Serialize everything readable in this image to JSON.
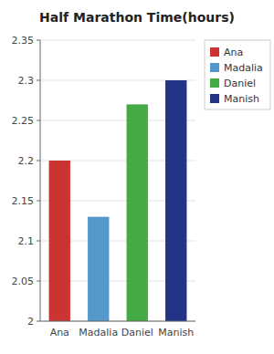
{
  "chart_data": {
    "type": "bar",
    "title": "Half Marathon Time(hours)",
    "categories": [
      "Ana",
      "Madalia",
      "Daniel",
      "Manish"
    ],
    "values": [
      2.2,
      2.13,
      2.27,
      2.3
    ],
    "colors": [
      "#cc3333",
      "#5599cc",
      "#44aa44",
      "#223388"
    ],
    "ylim": [
      2,
      2.35
    ],
    "yticks": [
      2,
      2.05,
      2.1,
      2.15,
      2.2,
      2.25,
      2.3,
      2.35
    ],
    "grid": true,
    "legend": "upper right"
  }
}
